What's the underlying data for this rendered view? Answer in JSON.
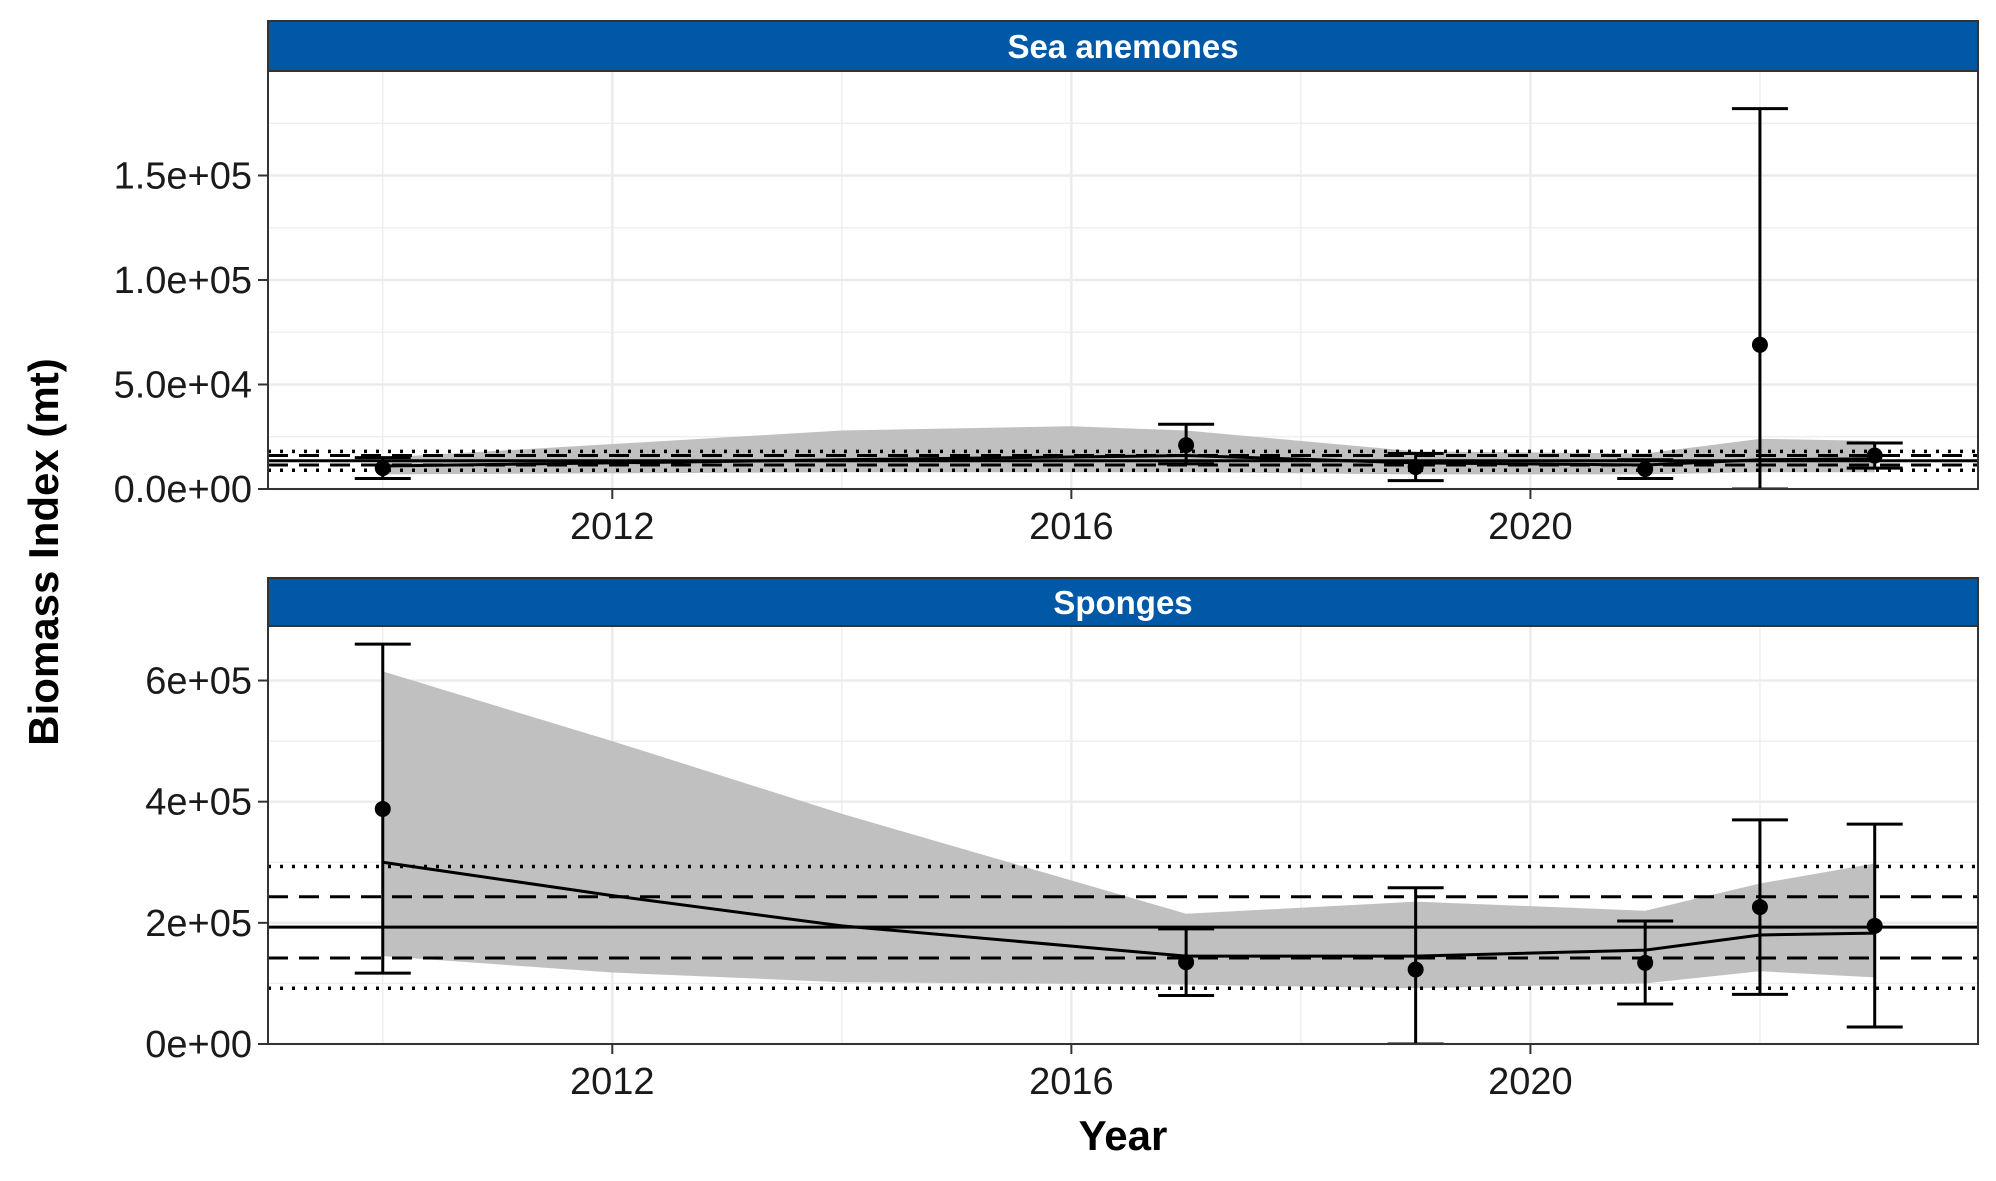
{
  "chart_data": {
    "type": "line",
    "xlabel": "Year",
    "ylabel": "Biomass Index (mt)",
    "xlim": [
      2009,
      2023.9
    ],
    "x_ticks": [
      2012,
      2016,
      2020
    ],
    "colors": {
      "strip": "#0158a6",
      "band": "#bdbdbd",
      "line": "#000000",
      "grid": "#ebebeb"
    },
    "panels": [
      {
        "title": "Sea anemones",
        "ylim": [
          0,
          200000
        ],
        "y_ticks": [
          {
            "value": 0,
            "label": "0.0e+00"
          },
          {
            "value": 50000,
            "label": "5.0e+04"
          },
          {
            "value": 100000,
            "label": "1.0e+05"
          },
          {
            "value": 150000,
            "label": "1.5e+05"
          }
        ],
        "observations": [
          {
            "year": 2010,
            "value": 10000,
            "lower": 5000,
            "upper": 15000
          },
          {
            "year": 2017,
            "value": 21000,
            "lower": 12000,
            "upper": 31000
          },
          {
            "year": 2019,
            "value": 10500,
            "lower": 4000,
            "upper": 17000
          },
          {
            "year": 2021,
            "value": 9500,
            "lower": 5000,
            "upper": 14000
          },
          {
            "year": 2022,
            "value": 69000,
            "lower": 0,
            "upper": 182000
          },
          {
            "year": 2023,
            "value": 16000,
            "lower": 10000,
            "upper": 22000
          }
        ],
        "trend": [
          {
            "year": 2010,
            "value": 11000
          },
          {
            "year": 2014,
            "value": 14000
          },
          {
            "year": 2017,
            "value": 16000
          },
          {
            "year": 2019,
            "value": 12500
          },
          {
            "year": 2021,
            "value": 11500
          },
          {
            "year": 2022,
            "value": 14000
          },
          {
            "year": 2023,
            "value": 14500
          }
        ],
        "band_upper": [
          {
            "year": 2010,
            "value": 15000
          },
          {
            "year": 2014,
            "value": 28000
          },
          {
            "year": 2016,
            "value": 30000
          },
          {
            "year": 2017,
            "value": 28000
          },
          {
            "year": 2019,
            "value": 18000
          },
          {
            "year": 2021,
            "value": 17000
          },
          {
            "year": 2022,
            "value": 24000
          },
          {
            "year": 2023,
            "value": 23000
          }
        ],
        "band_lower": [
          {
            "year": 2010,
            "value": 7000
          },
          {
            "year": 2014,
            "value": 8000
          },
          {
            "year": 2017,
            "value": 8000
          },
          {
            "year": 2019,
            "value": 7000
          },
          {
            "year": 2021,
            "value": 7000
          },
          {
            "year": 2022,
            "value": 8000
          },
          {
            "year": 2023,
            "value": 8000
          }
        ],
        "reference_lines": [
          {
            "value": 13500,
            "style": "solid"
          },
          {
            "value": 11500,
            "style": "dashed"
          },
          {
            "value": 16000,
            "style": "dashed"
          },
          {
            "value": 9000,
            "style": "dotted"
          },
          {
            "value": 18000,
            "style": "dotted"
          }
        ]
      },
      {
        "title": "Sponges",
        "ylim": [
          0,
          690000
        ],
        "y_ticks": [
          {
            "value": 0,
            "label": "0e+00"
          },
          {
            "value": 200000,
            "label": "2e+05"
          },
          {
            "value": 400000,
            "label": "4e+05"
          },
          {
            "value": 600000,
            "label": "6e+05"
          }
        ],
        "observations": [
          {
            "year": 2010,
            "value": 388000,
            "lower": 117000,
            "upper": 660000
          },
          {
            "year": 2017,
            "value": 135000,
            "lower": 80000,
            "upper": 190000
          },
          {
            "year": 2019,
            "value": 123000,
            "lower": 0,
            "upper": 258000
          },
          {
            "year": 2021,
            "value": 134000,
            "lower": 66000,
            "upper": 203000
          },
          {
            "year": 2022,
            "value": 226000,
            "lower": 82000,
            "upper": 370000
          },
          {
            "year": 2023,
            "value": 195000,
            "lower": 28000,
            "upper": 363000
          }
        ],
        "trend": [
          {
            "year": 2010,
            "value": 300000
          },
          {
            "year": 2012,
            "value": 245000
          },
          {
            "year": 2014,
            "value": 195000
          },
          {
            "year": 2017,
            "value": 145000
          },
          {
            "year": 2019,
            "value": 145000
          },
          {
            "year": 2021,
            "value": 155000
          },
          {
            "year": 2022,
            "value": 180000
          },
          {
            "year": 2023,
            "value": 183000
          }
        ],
        "band_upper": [
          {
            "year": 2010,
            "value": 615000
          },
          {
            "year": 2012,
            "value": 500000
          },
          {
            "year": 2014,
            "value": 380000
          },
          {
            "year": 2017,
            "value": 215000
          },
          {
            "year": 2019,
            "value": 235000
          },
          {
            "year": 2021,
            "value": 220000
          },
          {
            "year": 2022,
            "value": 265000
          },
          {
            "year": 2023,
            "value": 298000
          }
        ],
        "band_lower": [
          {
            "year": 2010,
            "value": 145000
          },
          {
            "year": 2012,
            "value": 118000
          },
          {
            "year": 2014,
            "value": 102000
          },
          {
            "year": 2017,
            "value": 98000
          },
          {
            "year": 2019,
            "value": 92000
          },
          {
            "year": 2021,
            "value": 100000
          },
          {
            "year": 2022,
            "value": 120000
          },
          {
            "year": 2023,
            "value": 110000
          }
        ],
        "reference_lines": [
          {
            "value": 193000,
            "style": "solid"
          },
          {
            "value": 142000,
            "style": "dashed"
          },
          {
            "value": 243000,
            "style": "dashed"
          },
          {
            "value": 92000,
            "style": "dotted"
          },
          {
            "value": 293000,
            "style": "dotted"
          }
        ]
      }
    ]
  }
}
